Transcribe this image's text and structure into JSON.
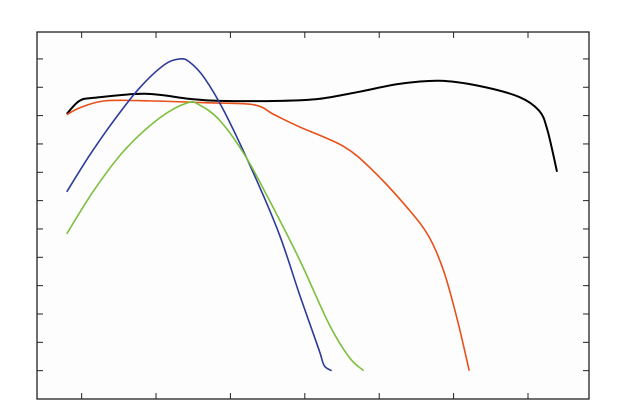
{
  "chart_data": {
    "type": "line",
    "title": "",
    "xlabel": "",
    "ylabel": "",
    "xlim": [
      0.4,
      7.82
    ],
    "ylim": [
      0,
      12.95
    ],
    "x_ticks": [
      1,
      2,
      3,
      4,
      5,
      6,
      7
    ],
    "y_ticks": [
      1,
      2,
      3,
      4,
      5,
      6,
      7,
      8,
      9,
      10,
      11,
      12
    ],
    "tick_labels_shown": false,
    "grid": false,
    "legend": "none",
    "series": [
      {
        "color": "#000000",
        "x": [
          0.8,
          0.97,
          1.17,
          1.85,
          2.45,
          2.85,
          3.66,
          4.19,
          4.73,
          5.27,
          5.81,
          6.34,
          6.88,
          7.15,
          7.26,
          7.39
        ],
        "y": [
          10.06,
          10.52,
          10.63,
          10.77,
          10.59,
          10.52,
          10.52,
          10.59,
          10.84,
          11.12,
          11.23,
          11.05,
          10.66,
          10.17,
          9.5,
          8.02
        ]
      },
      {
        "color": "#e8501a",
        "x": [
          0.8,
          0.97,
          1.31,
          1.91,
          2.72,
          3.32,
          3.59,
          3.93,
          4.53,
          4.93,
          5.4,
          5.67,
          5.87,
          6.05,
          6.21
        ],
        "y": [
          10.03,
          10.27,
          10.52,
          10.52,
          10.45,
          10.38,
          10.03,
          9.6,
          8.9,
          8.02,
          6.68,
          5.72,
          4.49,
          2.8,
          1.0
        ]
      },
      {
        "color": "#2e3a9a",
        "x": [
          0.8,
          1.11,
          1.44,
          1.78,
          2.11,
          2.32,
          2.45,
          2.65,
          2.92,
          3.32,
          3.66,
          3.93,
          4.19,
          4.26,
          4.36
        ],
        "y": [
          7.31,
          8.61,
          9.85,
          10.98,
          11.79,
          12.0,
          11.89,
          11.33,
          10.13,
          7.91,
          5.79,
          3.68,
          1.74,
          1.18,
          1.0
        ]
      },
      {
        "color": "#7cbf3e",
        "x": [
          0.8,
          1.17,
          1.58,
          2.05,
          2.42,
          2.58,
          2.85,
          3.19,
          3.52,
          3.93,
          4.33,
          4.6,
          4.79
        ],
        "y": [
          5.83,
          7.38,
          8.79,
          9.92,
          10.45,
          10.38,
          9.85,
          8.62,
          7.03,
          4.91,
          2.62,
          1.46,
          1.0
        ]
      }
    ]
  }
}
